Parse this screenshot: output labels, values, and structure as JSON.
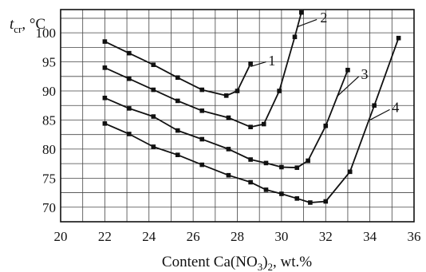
{
  "chart_data": {
    "type": "line",
    "ylabel_main": "t",
    "ylabel_sub": "cr",
    "ylabel_unit": ", °C",
    "xlabel_prefix": "Content Ca(NO",
    "xlabel_sub": "3",
    "xlabel_suffix": ")",
    "xlabel_sub2": "2",
    "xlabel_tail": ", wt.%",
    "xlim": [
      20,
      36
    ],
    "ylim": [
      67.5,
      104
    ],
    "x_ticks": [
      "20",
      "22",
      "24",
      "26",
      "28",
      "30",
      "32",
      "34",
      "36"
    ],
    "y_ticks": [
      "70",
      "75",
      "80",
      "85",
      "90",
      "95",
      "100"
    ],
    "grid": true,
    "series": [
      {
        "name": "1",
        "x": [
          22,
          23.1,
          24.2,
          25.3,
          26.4,
          27.5,
          28,
          28.6
        ],
        "y": [
          98.5,
          96.5,
          94.5,
          92.3,
          90.2,
          89.2,
          90,
          94.7
        ]
      },
      {
        "name": "2",
        "x": [
          22,
          23.1,
          24.2,
          25.3,
          26.4,
          27.6,
          28.6,
          29.2,
          29.9,
          30.6,
          30.9
        ],
        "y": [
          94,
          92.1,
          90.2,
          88.3,
          86.6,
          85.4,
          83.8,
          84.3,
          90,
          99.3,
          103.5
        ]
      },
      {
        "name": "3",
        "x": [
          22,
          23.1,
          24.2,
          25.3,
          26.4,
          27.6,
          28.6,
          29.3,
          30,
          30.7,
          31.2,
          32,
          33
        ],
        "y": [
          88.8,
          87,
          85.6,
          83.2,
          81.7,
          80,
          78.2,
          77.6,
          76.9,
          76.8,
          78,
          84,
          93.6
        ]
      },
      {
        "name": "4",
        "x": [
          22,
          23.1,
          24.2,
          25.3,
          26.4,
          27.6,
          28.6,
          29.3,
          30,
          30.7,
          31.3,
          32,
          33.1,
          34.2,
          35.3
        ],
        "y": [
          84.4,
          82.6,
          80.4,
          79,
          77.3,
          75.5,
          74.3,
          73,
          72.3,
          71.5,
          70.8,
          71,
          76.1,
          87.5,
          99.1
        ]
      }
    ],
    "curve_labels": [
      "1",
      "2",
      "3",
      "4"
    ]
  }
}
